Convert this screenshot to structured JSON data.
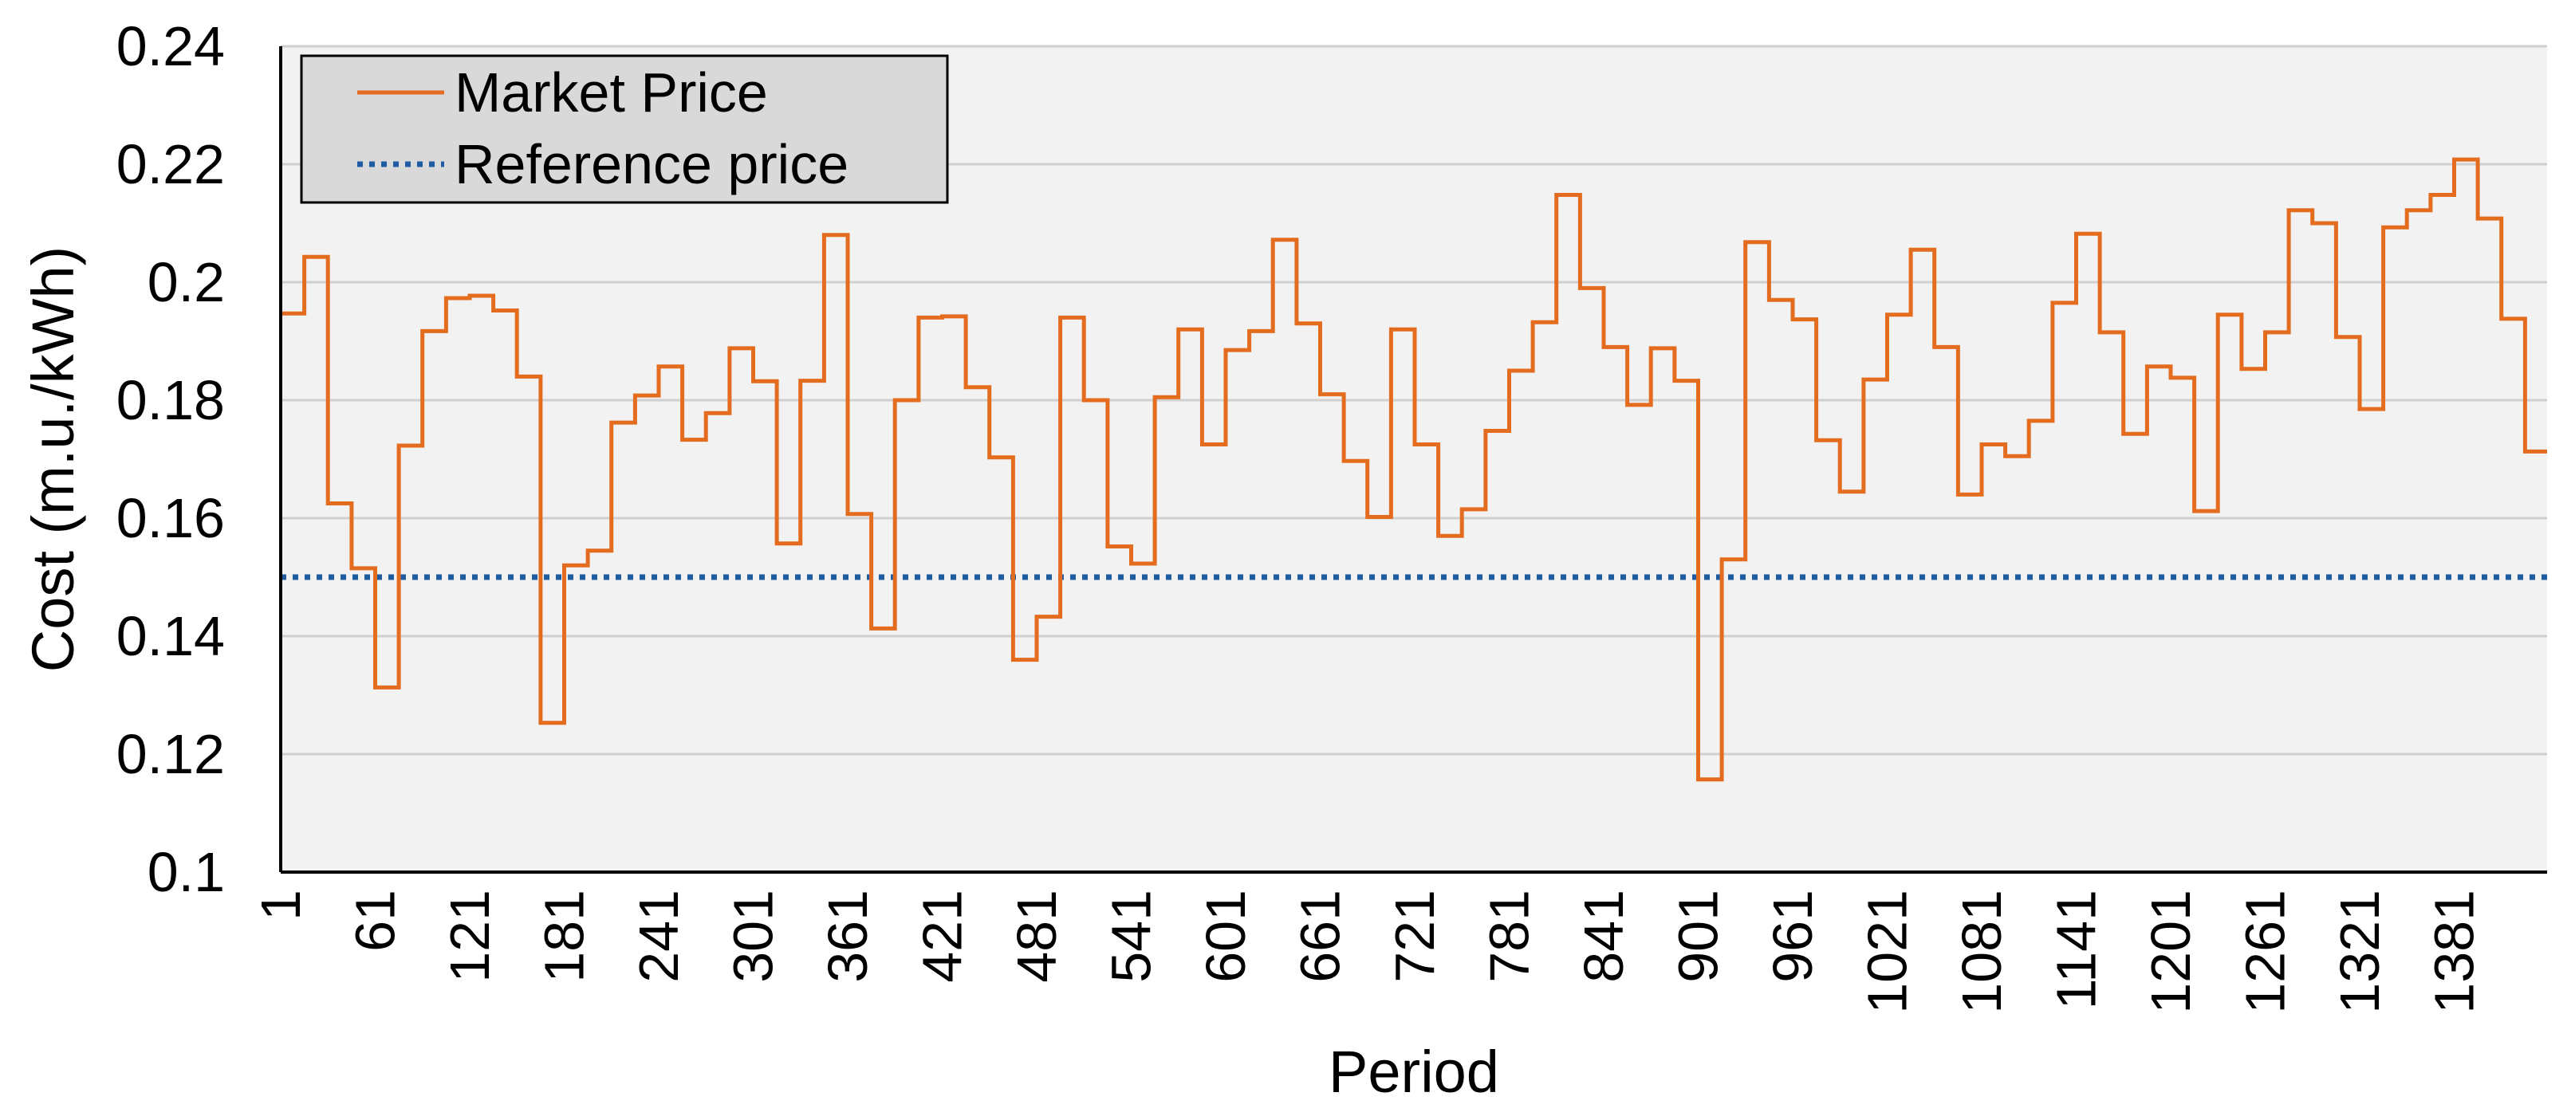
{
  "chart_data": {
    "type": "line",
    "title": "",
    "xlabel": "Period",
    "ylabel": "Cost (m.u./kWh)",
    "ylim": [
      0.1,
      0.24
    ],
    "y_ticks": [
      "0.1",
      "0.12",
      "0.14",
      "0.16",
      "0.18",
      "0.2",
      "0.22",
      "0.24"
    ],
    "x_ticks": [
      "1",
      "61",
      "121",
      "181",
      "241",
      "301",
      "361",
      "421",
      "481",
      "541",
      "601",
      "661",
      "721",
      "781",
      "841",
      "901",
      "961",
      "1021",
      "1081",
      "1141",
      "1201",
      "1261",
      "1321",
      "1381"
    ],
    "x_range": [
      1,
      1440
    ],
    "grid": true,
    "legend_position": "top-left",
    "series": [
      {
        "name": "Market Price",
        "style": "solid-step",
        "color": "#E36C1F",
        "step_width": 15,
        "x_start": 1,
        "values": [
          0.1947,
          0.2043,
          0.1625,
          0.1515,
          0.1313,
          0.1723,
          0.1917,
          0.1973,
          0.1977,
          0.1952,
          0.184,
          0.1253,
          0.152,
          0.1545,
          0.1762,
          0.1808,
          0.1857,
          0.1733,
          0.1778,
          0.1888,
          0.1832,
          0.1557,
          0.1833,
          0.208,
          0.1607,
          0.1413,
          0.18,
          0.194,
          0.1942,
          0.1822,
          0.1703,
          0.136,
          0.1433,
          0.194,
          0.18,
          0.1552,
          0.1523,
          0.1805,
          0.192,
          0.1725,
          0.1885,
          0.1917,
          0.2072,
          0.193,
          0.181,
          0.1697,
          0.1602,
          0.192,
          0.1725,
          0.157,
          0.1615,
          0.1748,
          0.185,
          0.1932,
          0.2148,
          0.199,
          0.189,
          0.1792,
          0.1888,
          0.1833,
          0.1157,
          0.153,
          0.2068,
          0.197,
          0.1937,
          0.1732,
          0.1645,
          0.1835,
          0.1945,
          0.2055,
          0.189,
          0.164,
          0.1725,
          0.1705,
          0.1765,
          0.1965,
          0.2082,
          0.1915,
          0.1743,
          0.1857,
          0.1838,
          0.1612,
          0.1945,
          0.1853,
          0.1915,
          0.2122,
          0.21,
          0.1907,
          0.1785,
          0.2093,
          0.2122,
          0.2148,
          0.2208,
          0.2108,
          0.1938,
          0.1713
        ]
      },
      {
        "name": "Reference price",
        "style": "dotted",
        "color": "#1F5BA0",
        "constant": 0.15
      }
    ]
  }
}
